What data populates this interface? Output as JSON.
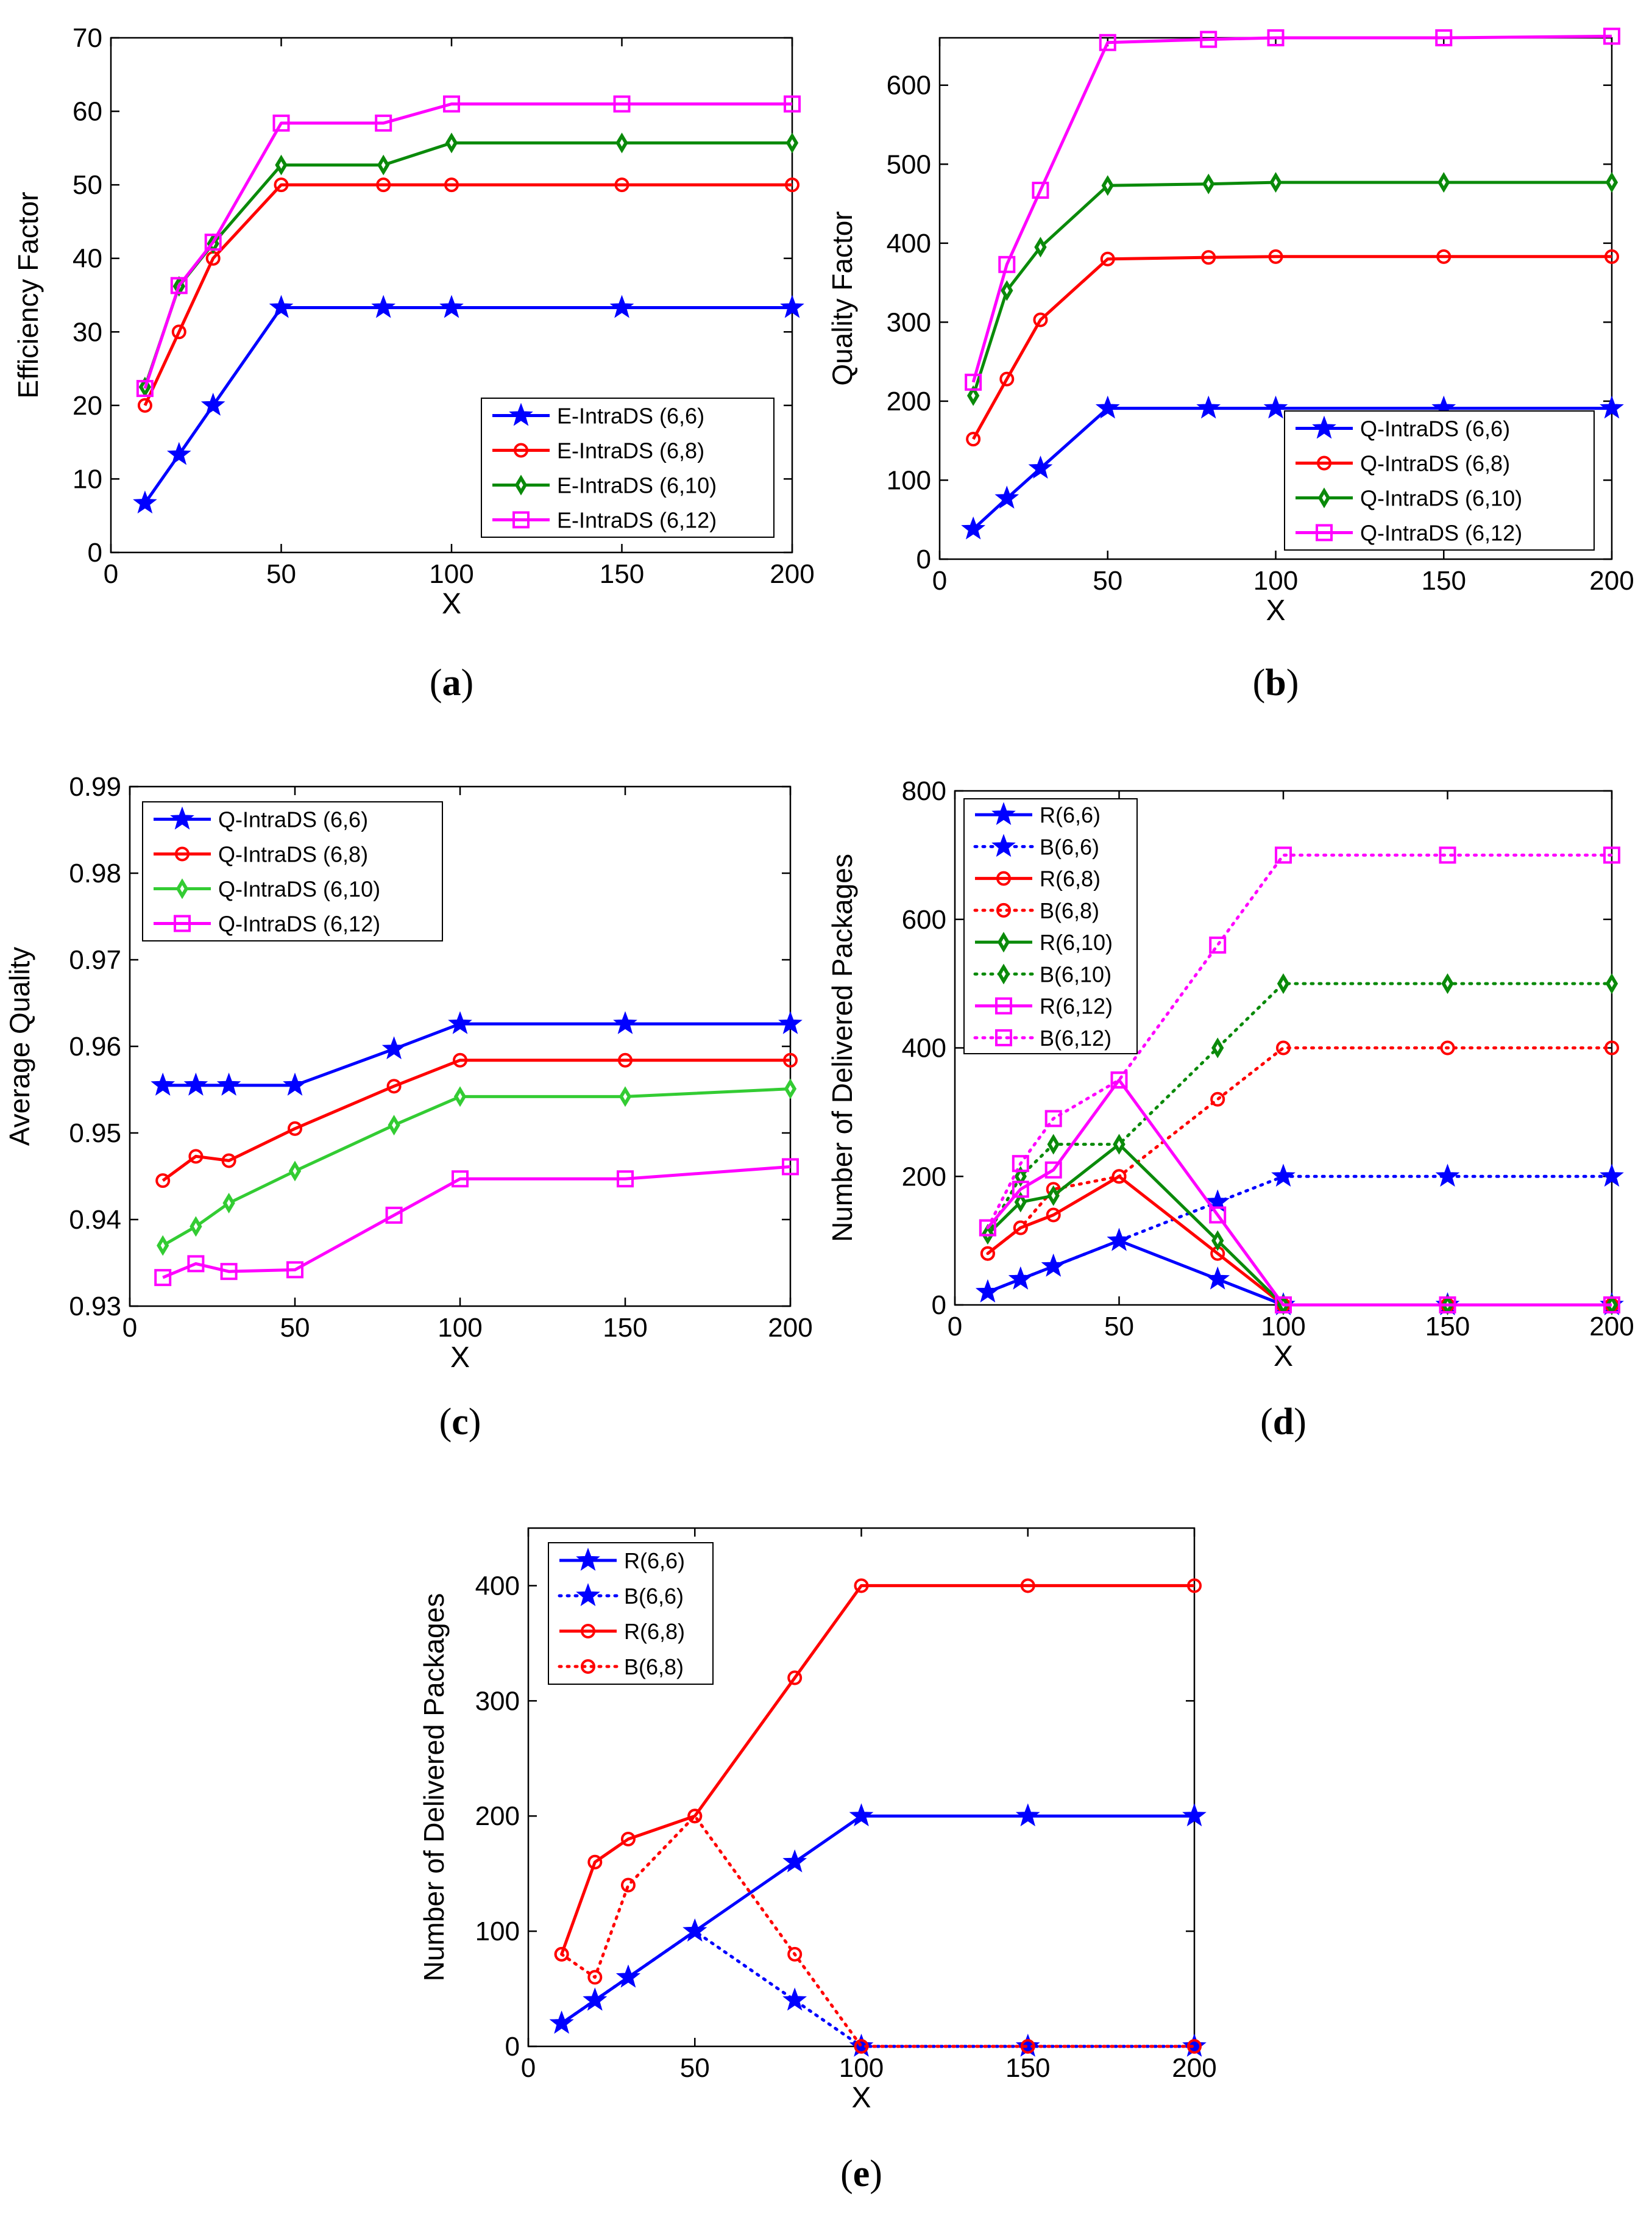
{
  "colors": {
    "blue": "#0000ff",
    "red": "#ff0000",
    "green": "#0a8a0a",
    "light_green": "#33cc33",
    "magenta": "#ff00ff",
    "axis": "#000000"
  },
  "chart_data": [
    {
      "id": "a",
      "type": "line",
      "caption": "(a)",
      "xlabel": "X",
      "ylabel": "Efficiency Factor",
      "xlim": [
        0,
        200
      ],
      "ylim": [
        0,
        70
      ],
      "xticks": [
        "0",
        "50",
        "100",
        "150",
        "200"
      ],
      "yticks": [
        "0",
        "10",
        "20",
        "30",
        "40",
        "50",
        "60",
        "70"
      ],
      "grid": false,
      "legend_position": "bottom-right",
      "series": [
        {
          "name": "E-IntraDS (6,6)",
          "color": "blue",
          "marker": "star",
          "dash": "solid",
          "x": [
            10,
            20,
            30,
            50,
            80,
            100,
            150,
            200
          ],
          "y": [
            6.7,
            13.3,
            20,
            33.3,
            33.3,
            33.3,
            33.3,
            33.3
          ]
        },
        {
          "name": "E-IntraDS (6,8)",
          "color": "red",
          "marker": "circle",
          "dash": "solid",
          "x": [
            10,
            20,
            30,
            50,
            80,
            100,
            150,
            200
          ],
          "y": [
            20,
            30,
            40,
            50,
            50,
            50,
            50,
            50
          ]
        },
        {
          "name": "E-IntraDS (6,10)",
          "color": "green",
          "marker": "diamond",
          "dash": "solid",
          "x": [
            10,
            20,
            30,
            50,
            80,
            100,
            150,
            200
          ],
          "y": [
            22.5,
            36.2,
            42,
            52.7,
            52.7,
            55.7,
            55.7,
            55.7
          ]
        },
        {
          "name": "E-IntraDS (6,12)",
          "color": "magenta",
          "marker": "square",
          "dash": "solid",
          "x": [
            10,
            20,
            30,
            50,
            80,
            100,
            150,
            200
          ],
          "y": [
            22.3,
            36.3,
            42.2,
            58.4,
            58.4,
            61,
            61,
            61
          ]
        }
      ]
    },
    {
      "id": "b",
      "type": "line",
      "caption": "(b)",
      "xlabel": "X",
      "ylabel": "Quality Factor",
      "xlim": [
        0,
        200
      ],
      "ylim": [
        0,
        660
      ],
      "xticks": [
        "0",
        "50",
        "100",
        "150",
        "200"
      ],
      "yticks": [
        "0",
        "100",
        "200",
        "300",
        "400",
        "500",
        "600"
      ],
      "grid": false,
      "legend_position": "bottom-right",
      "series": [
        {
          "name": "Q-IntraDS (6,6)",
          "color": "blue",
          "marker": "star",
          "dash": "solid",
          "x": [
            10,
            20,
            30,
            50,
            80,
            100,
            150,
            200
          ],
          "y": [
            38,
            77,
            115,
            191,
            191,
            191,
            191,
            191
          ]
        },
        {
          "name": "Q-IntraDS (6,8)",
          "color": "red",
          "marker": "circle",
          "dash": "solid",
          "x": [
            10,
            20,
            30,
            50,
            80,
            100,
            150,
            200
          ],
          "y": [
            152,
            228,
            303,
            380,
            382,
            383,
            383,
            383
          ]
        },
        {
          "name": "Q-IntraDS (6,10)",
          "color": "green",
          "marker": "diamond",
          "dash": "solid",
          "x": [
            10,
            20,
            30,
            50,
            80,
            100,
            150,
            200
          ],
          "y": [
            207,
            340,
            395,
            473,
            475,
            477,
            477,
            477
          ]
        },
        {
          "name": "Q-IntraDS (6,12)",
          "color": "magenta",
          "marker": "square",
          "dash": "solid",
          "x": [
            10,
            20,
            30,
            50,
            80,
            100,
            150,
            200
          ],
          "y": [
            224,
            373,
            467,
            654,
            658,
            660,
            660,
            662
          ]
        }
      ]
    },
    {
      "id": "c",
      "type": "line",
      "caption": "(c)",
      "xlabel": "X",
      "ylabel": "Average Quality",
      "xlim": [
        0,
        200
      ],
      "ylim": [
        0.93,
        0.99
      ],
      "xticks": [
        "0",
        "50",
        "100",
        "150",
        "200"
      ],
      "yticks": [
        "0.93",
        "0.94",
        "0.95",
        "0.96",
        "0.97",
        "0.98",
        "0.99"
      ],
      "grid": false,
      "legend_position": "top-left",
      "series": [
        {
          "name": "Q-IntraDS (6,6)",
          "color": "blue",
          "marker": "star",
          "dash": "solid",
          "x": [
            10,
            20,
            30,
            50,
            80,
            100,
            150,
            200
          ],
          "y": [
            0.9555,
            0.9555,
            0.9555,
            0.9555,
            0.9597,
            0.9626,
            0.9626,
            0.9626
          ]
        },
        {
          "name": "Q-IntraDS (6,8)",
          "color": "red",
          "marker": "circle",
          "dash": "solid",
          "x": [
            10,
            20,
            30,
            50,
            80,
            100,
            150,
            200
          ],
          "y": [
            0.9445,
            0.9473,
            0.9468,
            0.9505,
            0.9554,
            0.9584,
            0.9584,
            0.9584
          ]
        },
        {
          "name": "Q-IntraDS (6,10)",
          "color": "light_green",
          "marker": "diamond",
          "dash": "solid",
          "x": [
            10,
            20,
            30,
            50,
            80,
            100,
            150,
            200
          ],
          "y": [
            0.937,
            0.9392,
            0.9419,
            0.9456,
            0.9509,
            0.9542,
            0.9542,
            0.9551
          ]
        },
        {
          "name": "Q-IntraDS (6,12)",
          "color": "magenta",
          "marker": "square",
          "dash": "solid",
          "x": [
            10,
            20,
            30,
            50,
            80,
            100,
            150,
            200
          ],
          "y": [
            0.9333,
            0.9349,
            0.934,
            0.9342,
            0.9405,
            0.9447,
            0.9447,
            0.9461
          ]
        }
      ]
    },
    {
      "id": "d",
      "type": "line",
      "caption": "(d)",
      "xlabel": "X",
      "ylabel": "Number of Delivered Packages",
      "xlim": [
        0,
        200
      ],
      "ylim": [
        0,
        800
      ],
      "xticks": [
        "0",
        "50",
        "100",
        "150",
        "200"
      ],
      "yticks": [
        "0",
        "200",
        "400",
        "600",
        "800"
      ],
      "grid": false,
      "legend_position": "top-left",
      "series": [
        {
          "name": "R(6,6)",
          "color": "blue",
          "marker": "star",
          "dash": "solid",
          "x": [
            10,
            20,
            30,
            50,
            80,
            100,
            150,
            200
          ],
          "y": [
            20,
            40,
            60,
            100,
            40,
            0,
            0,
            0
          ]
        },
        {
          "name": "B(6,6)",
          "color": "blue",
          "marker": "star",
          "dash": "dotted",
          "x": [
            10,
            20,
            30,
            50,
            80,
            100,
            150,
            200
          ],
          "y": [
            20,
            40,
            60,
            100,
            160,
            200,
            200,
            200
          ]
        },
        {
          "name": "R(6,8)",
          "color": "red",
          "marker": "circle",
          "dash": "solid",
          "x": [
            10,
            20,
            30,
            50,
            80,
            100,
            150,
            200
          ],
          "y": [
            80,
            120,
            140,
            200,
            80,
            0,
            0,
            0
          ]
        },
        {
          "name": "B(6,8)",
          "color": "red",
          "marker": "circle",
          "dash": "dotted",
          "x": [
            10,
            20,
            30,
            50,
            80,
            100,
            150,
            200
          ],
          "y": [
            80,
            120,
            180,
            200,
            320,
            400,
            400,
            400
          ]
        },
        {
          "name": "R(6,10)",
          "color": "green",
          "marker": "diamond",
          "dash": "solid",
          "x": [
            10,
            20,
            30,
            50,
            80,
            100,
            150,
            200
          ],
          "y": [
            110,
            160,
            170,
            250,
            100,
            0,
            0,
            0
          ]
        },
        {
          "name": "B(6,10)",
          "color": "green",
          "marker": "diamond",
          "dash": "dotted",
          "x": [
            10,
            20,
            30,
            50,
            80,
            100,
            150,
            200
          ],
          "y": [
            110,
            200,
            250,
            250,
            400,
            500,
            500,
            500
          ]
        },
        {
          "name": "R(6,12)",
          "color": "magenta",
          "marker": "square",
          "dash": "solid",
          "x": [
            10,
            20,
            30,
            50,
            80,
            100,
            150,
            200
          ],
          "y": [
            120,
            180,
            210,
            350,
            140,
            0,
            0,
            0
          ]
        },
        {
          "name": "B(6,12)",
          "color": "magenta",
          "marker": "square",
          "dash": "dotted",
          "x": [
            10,
            20,
            30,
            50,
            80,
            100,
            150,
            200
          ],
          "y": [
            120,
            220,
            290,
            350,
            560,
            700,
            700,
            700
          ]
        }
      ]
    },
    {
      "id": "e",
      "type": "line",
      "caption": "(e)",
      "xlabel": "X",
      "ylabel": "Number of Delivered Packages",
      "xlim": [
        0,
        200
      ],
      "ylim": [
        0,
        450
      ],
      "xticks": [
        "0",
        "50",
        "100",
        "150",
        "200"
      ],
      "yticks": [
        "0",
        "100",
        "200",
        "300",
        "400"
      ],
      "grid": false,
      "legend_position": "top-left",
      "series": [
        {
          "name": "R(6,6)",
          "color": "blue",
          "marker": "star",
          "dash": "solid",
          "x": [
            10,
            20,
            30,
            50,
            80,
            100,
            150,
            200
          ],
          "y": [
            20,
            40,
            60,
            100,
            160,
            200,
            200,
            200
          ]
        },
        {
          "name": "B(6,6)",
          "color": "blue",
          "marker": "star",
          "dash": "dotted",
          "x": [
            10,
            20,
            30,
            50,
            80,
            100,
            150,
            200
          ],
          "y": [
            20,
            40,
            60,
            100,
            40,
            0,
            0,
            0
          ]
        },
        {
          "name": "R(6,8)",
          "color": "red",
          "marker": "circle",
          "dash": "solid",
          "x": [
            10,
            20,
            30,
            50,
            80,
            100,
            150,
            200
          ],
          "y": [
            80,
            160,
            180,
            200,
            320,
            400,
            400,
            400
          ]
        },
        {
          "name": "B(6,8)",
          "color": "red",
          "marker": "circle",
          "dash": "dotted",
          "x": [
            10,
            20,
            30,
            50,
            80,
            100,
            150,
            200
          ],
          "y": [
            80,
            60,
            140,
            200,
            80,
            0,
            0,
            0
          ]
        }
      ]
    }
  ]
}
